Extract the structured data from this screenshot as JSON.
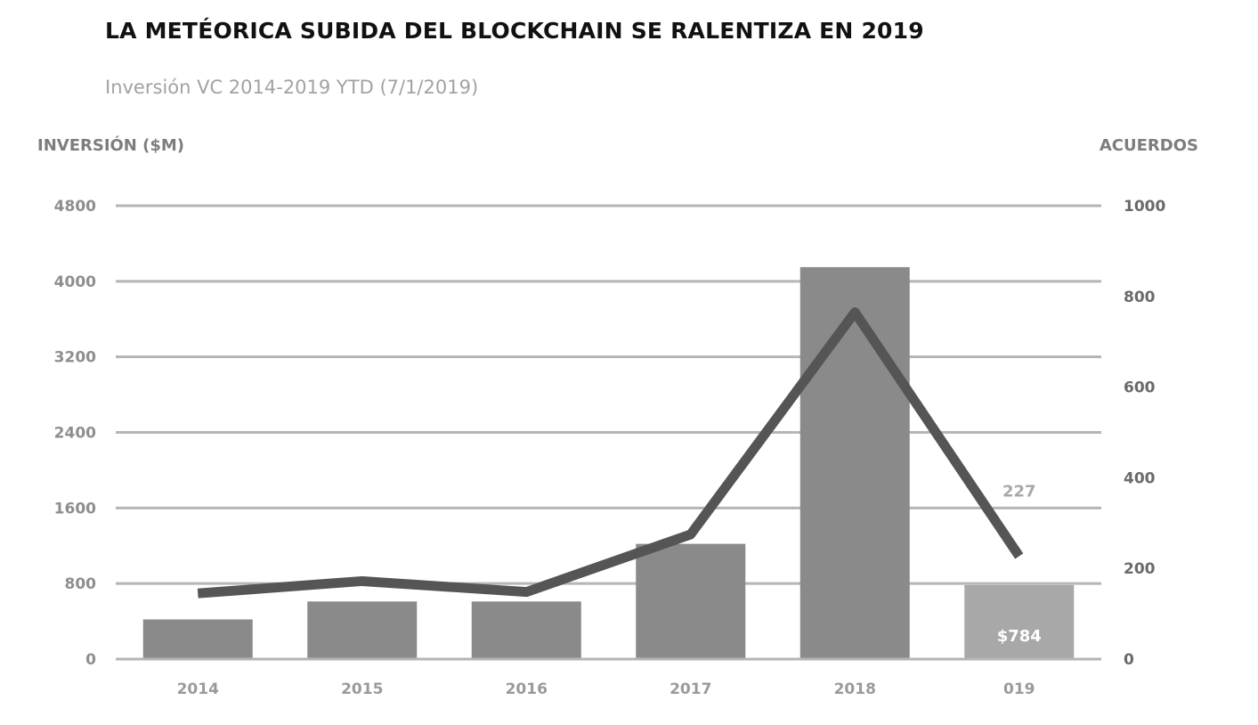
{
  "chart_data": {
    "type": "bar",
    "title": "LA METÉORICA SUBIDA DEL BLOCKCHAIN SE RALENTIZA EN 2019",
    "subtitle": "Inversión VC 2014-2019 YTD (7/1/2019)",
    "ylabel": "INVERSIÓN ($M)",
    "y2label": "ACUERDOS",
    "categories": [
      "2014",
      "2015",
      "2016",
      "2017",
      "2018",
      "019"
    ],
    "ylim": [
      0,
      4800
    ],
    "y2lim": [
      0,
      1000
    ],
    "yticks": [
      "0",
      "800",
      "1600",
      "2400",
      "3200",
      "4000",
      "4800"
    ],
    "y2ticks": [
      "0",
      "200",
      "400",
      "600",
      "800",
      "1000"
    ],
    "grid": true,
    "series": [
      {
        "type": "bar",
        "axis": "left",
        "values": [
          420,
          610,
          610,
          1220,
          4150,
          784
        ],
        "color": "#8a8a8a",
        "highlight_color": "#a8a8a8"
      },
      {
        "type": "line",
        "axis": "right",
        "values": [
          145,
          172,
          148,
          275,
          765,
          227
        ],
        "color": "#555555"
      }
    ],
    "annotations": [
      {
        "index": 5,
        "series": 1,
        "text": "227"
      },
      {
        "index": 5,
        "series": 0,
        "text": "$784"
      }
    ]
  }
}
